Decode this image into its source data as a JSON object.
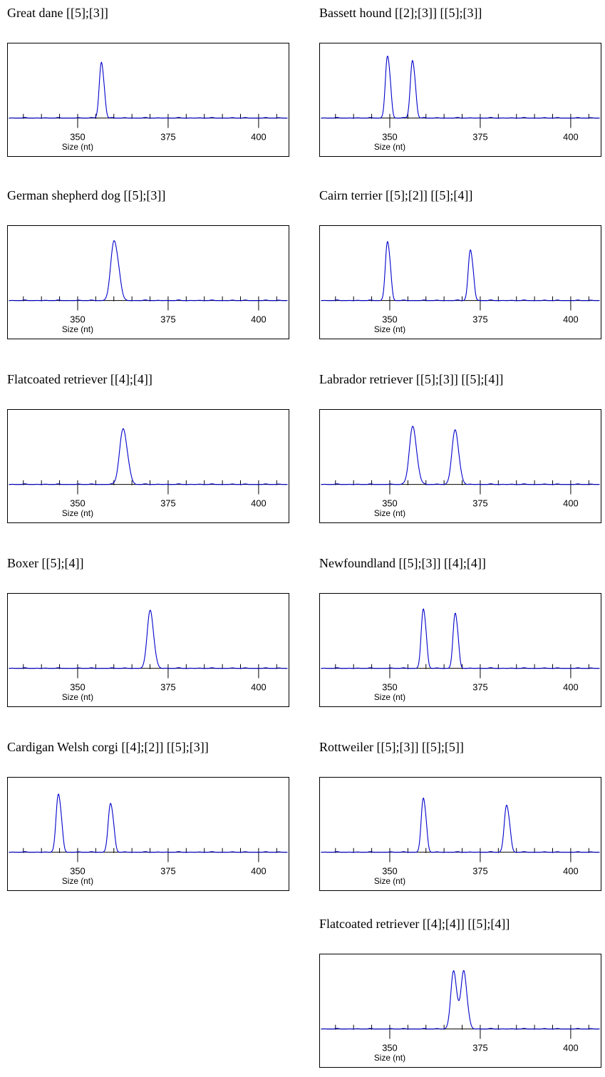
{
  "chart_data": [
    {
      "type": "line",
      "title": "Great dane [[5];[3]]",
      "xlabel": "Size (nt)",
      "xlim": [
        331,
        408
      ],
      "ylim": [
        0,
        1
      ],
      "xticks": [
        350,
        375,
        400
      ],
      "series": [
        {
          "name": "",
          "color": "#0000cc",
          "peaks": [
            {
              "x": 356.5,
              "y": 0.86,
              "w": 0.55,
              "shoulder": 0.3
            }
          ]
        }
      ]
    },
    {
      "type": "line",
      "title": "Bassett hound [[2];[3]] [[5];[3]]",
      "xlabel": "Size (nt)",
      "xlim": [
        331,
        408
      ],
      "ylim": [
        0,
        1
      ],
      "xticks": [
        350,
        375,
        400
      ],
      "series": [
        {
          "name": "",
          "color": "#0000cc",
          "peaks": [
            {
              "x": 349.3,
              "y": 0.95,
              "w": 0.55,
              "shoulder": 0.35
            },
            {
              "x": 356.2,
              "y": 0.88,
              "w": 0.55,
              "shoulder": 0.35
            }
          ]
        }
      ]
    },
    {
      "type": "line",
      "title": "German shepherd dog [[5];[3]]",
      "xlabel": "Size (nt)",
      "xlim": [
        331,
        408
      ],
      "ylim": [
        0,
        1
      ],
      "xticks": [
        350,
        375,
        400
      ],
      "series": [
        {
          "name": "",
          "color": "#0000cc",
          "peaks": [
            {
              "x": 360,
              "y": 0.92,
              "w": 0.9,
              "shoulder": 0.3
            }
          ]
        }
      ]
    },
    {
      "type": "line",
      "title": "Cairn terrier [[5];[2]] [[5];[4]]",
      "xlabel": "Size (nt)",
      "xlim": [
        331,
        408
      ],
      "ylim": [
        0,
        1
      ],
      "xticks": [
        350,
        375,
        400
      ],
      "series": [
        {
          "name": "",
          "color": "#0000cc",
          "peaks": [
            {
              "x": 349.3,
              "y": 0.9,
              "w": 0.55,
              "shoulder": 0.35
            },
            {
              "x": 372.2,
              "y": 0.77,
              "w": 0.55,
              "shoulder": 0.35
            }
          ]
        }
      ]
    },
    {
      "type": "line",
      "title": "Flatcoated retriever [[4];[4]]",
      "xlabel": "Size (nt)",
      "xlim": [
        331,
        408
      ],
      "ylim": [
        0,
        1
      ],
      "xticks": [
        350,
        375,
        400
      ],
      "series": [
        {
          "name": "",
          "color": "#0000cc",
          "peaks": [
            {
              "x": 362.5,
              "y": 0.87,
              "w": 0.95,
              "shoulder": 0.2
            }
          ]
        }
      ]
    },
    {
      "type": "line",
      "title": "Labrador retriever [[5];[3]] [[5];[4]]",
      "xlabel": "Size (nt)",
      "xlim": [
        331,
        408
      ],
      "ylim": [
        0,
        1
      ],
      "xticks": [
        350,
        375,
        400
      ],
      "series": [
        {
          "name": "",
          "color": "#0000cc",
          "peaks": [
            {
              "x": 356.3,
              "y": 0.92,
              "w": 0.9,
              "shoulder": 0.15
            },
            {
              "x": 368,
              "y": 0.86,
              "w": 0.85,
              "shoulder": 0.15
            }
          ]
        }
      ]
    },
    {
      "type": "line",
      "title": "Boxer [[5];[4]]",
      "xlabel": "Size (nt)",
      "xlim": [
        331,
        408
      ],
      "ylim": [
        0,
        1
      ],
      "xticks": [
        350,
        375,
        400
      ],
      "series": [
        {
          "name": "",
          "color": "#0000cc",
          "peaks": [
            {
              "x": 370,
              "y": 0.92,
              "w": 0.8,
              "shoulder": 0.15
            }
          ]
        }
      ]
    },
    {
      "type": "line",
      "title": "Newfoundland [[5];[3]] [[4];[4]]",
      "xlabel": "Size (nt)",
      "xlim": [
        331,
        408
      ],
      "ylim": [
        0,
        1
      ],
      "xticks": [
        350,
        375,
        400
      ],
      "series": [
        {
          "name": "",
          "color": "#0000cc",
          "peaks": [
            {
              "x": 359.2,
              "y": 0.9,
              "w": 0.55,
              "shoulder": 0.35
            },
            {
              "x": 368,
              "y": 0.84,
              "w": 0.55,
              "shoulder": 0.35
            }
          ]
        }
      ]
    },
    {
      "type": "line",
      "title": "Cardigan Welsh corgi [[4];[2]] [[5];[3]]",
      "xlabel": "Size (nt)",
      "xlim": [
        331,
        408
      ],
      "ylim": [
        0,
        1
      ],
      "xticks": [
        350,
        375,
        400
      ],
      "series": [
        {
          "name": "",
          "color": "#0000cc",
          "peaks": [
            {
              "x": 344.6,
              "y": 0.88,
              "w": 0.6,
              "shoulder": 0.35
            },
            {
              "x": 359,
              "y": 0.74,
              "w": 0.6,
              "shoulder": 0.35
            }
          ]
        }
      ]
    },
    {
      "type": "line",
      "title": "Rottweiler [[5];[3]] [[5];[5]]",
      "xlabel": "Size (nt)",
      "xlim": [
        331,
        408
      ],
      "ylim": [
        0,
        1
      ],
      "xticks": [
        350,
        375,
        400
      ],
      "series": [
        {
          "name": "",
          "color": "#0000cc",
          "peaks": [
            {
              "x": 359.2,
              "y": 0.82,
              "w": 0.55,
              "shoulder": 0.35
            },
            {
              "x": 382.2,
              "y": 0.72,
              "w": 0.6,
              "shoulder": 0.35
            }
          ]
        }
      ]
    },
    {
      "type": "line",
      "title": "Flatcoated retriever [[4];[4]] [[5];[4]]",
      "xlabel": "Size (nt)",
      "xlim": [
        331,
        408
      ],
      "ylim": [
        0,
        1
      ],
      "xticks": [
        350,
        375,
        400
      ],
      "series": [
        {
          "name": "",
          "color": "#0000cc",
          "peaks": [
            {
              "x": 367.6,
              "y": 0.92,
              "w": 0.75,
              "shoulder": 0.15
            },
            {
              "x": 370.4,
              "y": 0.92,
              "w": 0.75,
              "shoulder": 0.15
            }
          ]
        }
      ]
    }
  ]
}
